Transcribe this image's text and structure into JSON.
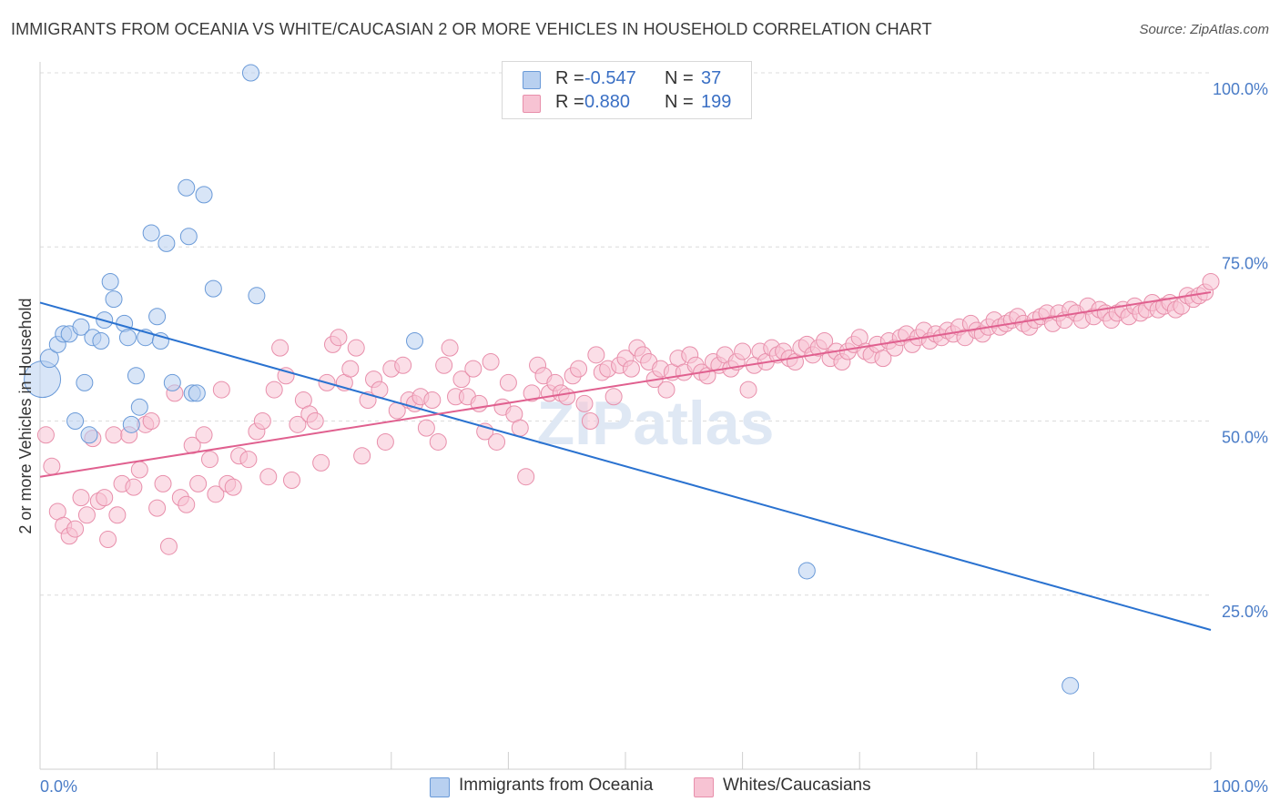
{
  "title": "IMMIGRANTS FROM OCEANIA VS WHITE/CAUCASIAN 2 OR MORE VEHICLES IN HOUSEHOLD CORRELATION CHART",
  "source": "Source: ZipAtlas.com",
  "watermark": "ZIPatlas",
  "colors": {
    "blue_fill": "#b8d0f0",
    "blue_stroke": "#6a9ad8",
    "blue_line": "#2a72d0",
    "pink_fill": "#f7c3d3",
    "pink_stroke": "#e88fab",
    "pink_line": "#e0608f",
    "tick_text": "#4a7cc7",
    "grid": "#dcdcdc"
  },
  "legend": {
    "series": [
      {
        "r_label": "R =",
        "r_value": "-0.547",
        "n_label": "N =",
        "n_value": "37"
      },
      {
        "r_label": "R =",
        "r_value": "0.880",
        "n_label": "N =",
        "n_value": "199"
      }
    ]
  },
  "bottom_legend": [
    "Immigrants from Oceania",
    "Whites/Caucasians"
  ],
  "chart_data": {
    "type": "scatter",
    "xlabel": "",
    "ylabel": "2 or more Vehicles in Household",
    "x_tick_labels": [
      "0.0%",
      "100.0%"
    ],
    "y_tick_labels": [
      "100.0%",
      "75.0%",
      "50.0%",
      "25.0%"
    ],
    "y_tick_values": [
      100,
      75,
      50,
      25
    ],
    "xlim": [
      0,
      100
    ],
    "ylim": [
      0,
      100
    ],
    "grid": true,
    "legend_position": "top-center",
    "series": [
      {
        "name": "Immigrants from Oceania",
        "trend": {
          "x": [
            0,
            100
          ],
          "y": [
            67.0,
            20.0
          ]
        },
        "points": [
          [
            0.2,
            56.0,
            20
          ],
          [
            0.8,
            59.0,
            10
          ],
          [
            1.5,
            61.0,
            9
          ],
          [
            2.0,
            62.5,
            9
          ],
          [
            2.5,
            62.5,
            9
          ],
          [
            3.0,
            50.0,
            9
          ],
          [
            3.5,
            63.5,
            9
          ],
          [
            3.8,
            55.5,
            9
          ],
          [
            4.2,
            48.0,
            9
          ],
          [
            4.5,
            62.0,
            9
          ],
          [
            5.2,
            61.5,
            9
          ],
          [
            5.5,
            64.5,
            9
          ],
          [
            6.0,
            70.0,
            9
          ],
          [
            6.3,
            67.5,
            9
          ],
          [
            7.2,
            64.0,
            9
          ],
          [
            7.5,
            62.0,
            9
          ],
          [
            7.8,
            49.5,
            9
          ],
          [
            8.2,
            56.5,
            9
          ],
          [
            8.5,
            52.0,
            9
          ],
          [
            9.0,
            62.0,
            9
          ],
          [
            9.5,
            77.0,
            9
          ],
          [
            10.0,
            65.0,
            9
          ],
          [
            10.3,
            61.5,
            9
          ],
          [
            10.8,
            75.5,
            9
          ],
          [
            11.3,
            55.5,
            9
          ],
          [
            12.5,
            83.5,
            9
          ],
          [
            12.7,
            76.5,
            9
          ],
          [
            13.0,
            54.0,
            9
          ],
          [
            13.4,
            54.0,
            9
          ],
          [
            14.0,
            82.5,
            9
          ],
          [
            14.8,
            69.0,
            9
          ],
          [
            18.0,
            100.0,
            9
          ],
          [
            18.5,
            68.0,
            9
          ],
          [
            32.0,
            61.5,
            9
          ],
          [
            65.5,
            28.5,
            9
          ],
          [
            88.0,
            12.0,
            9
          ]
        ]
      },
      {
        "name": "Whites/Caucasians",
        "trend": {
          "x": [
            0,
            100
          ],
          "y": [
            42.0,
            68.5
          ]
        },
        "points": [
          [
            0.5,
            48.0
          ],
          [
            1.0,
            43.5
          ],
          [
            1.5,
            37.0
          ],
          [
            2.0,
            35.0
          ],
          [
            2.5,
            33.5
          ],
          [
            3.0,
            34.5
          ],
          [
            3.5,
            39.0
          ],
          [
            4.0,
            36.5
          ],
          [
            4.5,
            47.5
          ],
          [
            5.0,
            38.5
          ],
          [
            5.5,
            39.0
          ],
          [
            5.8,
            33.0
          ],
          [
            6.3,
            48.0
          ],
          [
            6.6,
            36.5
          ],
          [
            7.0,
            41.0
          ],
          [
            7.6,
            48.0
          ],
          [
            8.0,
            40.5
          ],
          [
            8.5,
            43.0
          ],
          [
            9.0,
            49.5
          ],
          [
            9.5,
            50.0
          ],
          [
            10.0,
            37.5
          ],
          [
            10.5,
            41.0
          ],
          [
            11.0,
            32.0
          ],
          [
            11.5,
            54.0
          ],
          [
            12.0,
            39.0
          ],
          [
            12.5,
            38.0
          ],
          [
            13.0,
            46.5
          ],
          [
            13.5,
            41.0
          ],
          [
            14.0,
            48.0
          ],
          [
            14.5,
            44.5
          ],
          [
            15.0,
            39.5
          ],
          [
            15.5,
            54.5
          ],
          [
            16.0,
            41.0
          ],
          [
            16.5,
            40.5
          ],
          [
            17.0,
            45.0
          ],
          [
            17.8,
            44.5
          ],
          [
            18.5,
            48.5
          ],
          [
            19.0,
            50.0
          ],
          [
            19.5,
            42.0
          ],
          [
            20.0,
            54.5
          ],
          [
            20.5,
            60.5
          ],
          [
            21.0,
            56.5
          ],
          [
            21.5,
            41.5
          ],
          [
            22.0,
            49.5
          ],
          [
            22.5,
            53.0
          ],
          [
            23.0,
            51.0
          ],
          [
            23.5,
            50.0
          ],
          [
            24.0,
            44.0
          ],
          [
            24.5,
            55.5
          ],
          [
            25.0,
            61.0
          ],
          [
            25.5,
            62.0
          ],
          [
            26.0,
            55.5
          ],
          [
            26.5,
            57.5
          ],
          [
            27.0,
            60.5
          ],
          [
            27.5,
            45.0
          ],
          [
            28.0,
            53.0
          ],
          [
            28.5,
            56.0
          ],
          [
            29.0,
            54.5
          ],
          [
            29.5,
            47.0
          ],
          [
            30.0,
            57.5
          ],
          [
            30.5,
            51.5
          ],
          [
            31.0,
            58.0
          ],
          [
            31.5,
            53.0
          ],
          [
            32.0,
            52.5
          ],
          [
            32.5,
            53.5
          ],
          [
            33.0,
            49.0
          ],
          [
            33.5,
            53.0
          ],
          [
            34.0,
            47.0
          ],
          [
            34.5,
            58.0
          ],
          [
            35.0,
            60.5
          ],
          [
            35.5,
            53.5
          ],
          [
            36.0,
            56.0
          ],
          [
            36.5,
            53.5
          ],
          [
            37.0,
            57.5
          ],
          [
            37.5,
            52.5
          ],
          [
            38.0,
            48.5
          ],
          [
            38.5,
            58.5
          ],
          [
            39.0,
            47.0
          ],
          [
            39.5,
            52.0
          ],
          [
            40.0,
            55.5
          ],
          [
            40.5,
            51.0
          ],
          [
            41.0,
            49.0
          ],
          [
            41.5,
            42.0
          ],
          [
            42.0,
            54.0
          ],
          [
            42.5,
            58.0
          ],
          [
            43.0,
            56.5
          ],
          [
            43.5,
            54.0
          ],
          [
            44.0,
            55.5
          ],
          [
            44.5,
            54.0
          ],
          [
            45.0,
            53.5
          ],
          [
            45.5,
            56.5
          ],
          [
            46.0,
            57.5
          ],
          [
            46.5,
            52.5
          ],
          [
            47.0,
            50.0
          ],
          [
            47.5,
            59.5
          ],
          [
            48.0,
            57.0
          ],
          [
            48.5,
            57.5
          ],
          [
            49.0,
            53.5
          ],
          [
            49.5,
            58.0
          ],
          [
            50.0,
            59.0
          ],
          [
            50.5,
            57.5
          ],
          [
            51.0,
            60.5
          ],
          [
            51.5,
            59.5
          ],
          [
            52.0,
            58.5
          ],
          [
            52.5,
            56.0
          ],
          [
            53.0,
            57.5
          ],
          [
            53.5,
            54.5
          ],
          [
            54.0,
            57.0
          ],
          [
            54.5,
            59.0
          ],
          [
            55.0,
            57.0
          ],
          [
            55.5,
            59.5
          ],
          [
            56.0,
            58.0
          ],
          [
            56.5,
            57.0
          ],
          [
            57.0,
            56.5
          ],
          [
            57.5,
            58.5
          ],
          [
            58.0,
            58.0
          ],
          [
            58.5,
            59.5
          ],
          [
            59.0,
            57.5
          ],
          [
            59.5,
            58.5
          ],
          [
            60.0,
            60.0
          ],
          [
            60.5,
            54.5
          ],
          [
            61.0,
            58.0
          ],
          [
            61.5,
            60.0
          ],
          [
            62.0,
            58.5
          ],
          [
            62.5,
            60.5
          ],
          [
            63.0,
            59.5
          ],
          [
            63.5,
            60.0
          ],
          [
            64.0,
            59.0
          ],
          [
            64.5,
            58.5
          ],
          [
            65.0,
            60.5
          ],
          [
            65.5,
            61.0
          ],
          [
            66.0,
            59.5
          ],
          [
            66.5,
            60.5
          ],
          [
            67.0,
            61.5
          ],
          [
            67.5,
            59.0
          ],
          [
            68.0,
            60.0
          ],
          [
            68.5,
            58.5
          ],
          [
            69.0,
            60.0
          ],
          [
            69.5,
            61.0
          ],
          [
            70.0,
            62.0
          ],
          [
            70.5,
            60.0
          ],
          [
            71.0,
            59.5
          ],
          [
            71.5,
            61.0
          ],
          [
            72.0,
            59.0
          ],
          [
            72.5,
            61.5
          ],
          [
            73.0,
            60.5
          ],
          [
            73.5,
            62.0
          ],
          [
            74.0,
            62.5
          ],
          [
            74.5,
            61.0
          ],
          [
            75.0,
            62.0
          ],
          [
            75.5,
            63.0
          ],
          [
            76.0,
            61.5
          ],
          [
            76.5,
            62.5
          ],
          [
            77.0,
            62.0
          ],
          [
            77.5,
            63.0
          ],
          [
            78.0,
            62.5
          ],
          [
            78.5,
            63.5
          ],
          [
            79.0,
            62.0
          ],
          [
            79.5,
            64.0
          ],
          [
            80.0,
            63.0
          ],
          [
            80.5,
            62.5
          ],
          [
            81.0,
            63.5
          ],
          [
            81.5,
            64.5
          ],
          [
            82.0,
            63.5
          ],
          [
            82.5,
            64.0
          ],
          [
            83.0,
            64.5
          ],
          [
            83.5,
            65.0
          ],
          [
            84.0,
            64.0
          ],
          [
            84.5,
            63.5
          ],
          [
            85.0,
            64.5
          ],
          [
            85.5,
            65.0
          ],
          [
            86.0,
            65.5
          ],
          [
            86.5,
            64.0
          ],
          [
            87.0,
            65.5
          ],
          [
            87.5,
            64.5
          ],
          [
            88.0,
            66.0
          ],
          [
            88.5,
            65.5
          ],
          [
            89.0,
            64.5
          ],
          [
            89.5,
            66.5
          ],
          [
            90.0,
            65.0
          ],
          [
            90.5,
            66.0
          ],
          [
            91.0,
            65.5
          ],
          [
            91.5,
            64.5
          ],
          [
            92.0,
            65.5
          ],
          [
            92.5,
            66.0
          ],
          [
            93.0,
            65.0
          ],
          [
            93.5,
            66.5
          ],
          [
            94.0,
            65.5
          ],
          [
            94.5,
            66.0
          ],
          [
            95.0,
            67.0
          ],
          [
            95.5,
            66.0
          ],
          [
            96.0,
            66.5
          ],
          [
            96.5,
            67.0
          ],
          [
            97.0,
            66.0
          ],
          [
            97.5,
            66.5
          ],
          [
            98.0,
            68.0
          ],
          [
            98.5,
            67.5
          ],
          [
            99.0,
            68.0
          ],
          [
            99.5,
            68.5
          ],
          [
            100.0,
            70.0
          ]
        ]
      }
    ]
  }
}
